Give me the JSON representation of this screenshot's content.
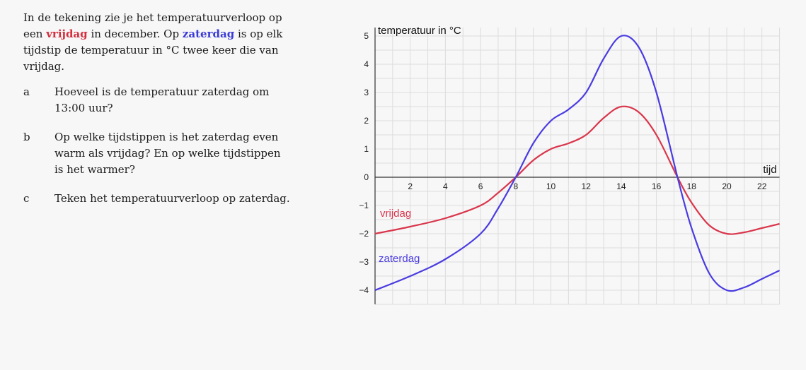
{
  "intro": {
    "p1": "In de tekening zie je het temperatuurverloop op een",
    "vrijdag": "vrijdag",
    "p2": "in december. Op",
    "zaterdag": "zaterdag",
    "p3": "is op elk tijdstip de temperatuur in °C twee keer die van vrijdag."
  },
  "questions": [
    {
      "letter": "a",
      "text": "Hoeveel is de temperatuur zaterdag om 13:00 uur?"
    },
    {
      "letter": "b",
      "text": "Op welke tijdstippen is het zaterdag even warm als vrijdag? En op welke tijdstippen is het warmer?"
    },
    {
      "letter": "c",
      "text": "Teken het temperatuurverloop op zaterdag."
    }
  ],
  "colors": {
    "vrijdag": "#d9364b",
    "zaterdag": "#4a3ce0"
  },
  "chart_data": {
    "type": "line",
    "ylabel": "temperatuur in °C",
    "xlabel": "tijd",
    "xlim": [
      0,
      23
    ],
    "ylim": [
      -4.5,
      5.3
    ],
    "xticks": [
      2,
      4,
      6,
      8,
      10,
      12,
      14,
      16,
      18,
      20,
      22
    ],
    "yticks": [
      -4,
      -3,
      -2,
      -1,
      0,
      1,
      2,
      3,
      4,
      5
    ],
    "ytick_labels": [
      "−4",
      "−3",
      "−2",
      "−1",
      "0",
      "1",
      "2",
      "3",
      "4",
      "5"
    ],
    "grid": true,
    "series": [
      {
        "name": "vrijdag",
        "x": [
          0,
          2,
          4,
          6,
          7,
          8,
          9,
          10,
          11,
          12,
          13,
          14,
          15,
          16,
          17.2,
          18,
          19,
          20,
          21,
          22,
          23
        ],
        "y": [
          -2,
          -1.75,
          -1.45,
          -1,
          -0.55,
          0,
          0.6,
          1,
          1.2,
          1.5,
          2.1,
          2.5,
          2.3,
          1.5,
          0,
          -0.9,
          -1.7,
          -2,
          -1.95,
          -1.8,
          -1.65
        ]
      },
      {
        "name": "zaterdag",
        "x": [
          0,
          2,
          4,
          6,
          7,
          8,
          9,
          10,
          11,
          12,
          13,
          14,
          15,
          16,
          17.2,
          18,
          19,
          20,
          21,
          22,
          23
        ],
        "y": [
          -4,
          -3.5,
          -2.9,
          -2,
          -1.1,
          0,
          1.2,
          2,
          2.4,
          3,
          4.2,
          5,
          4.6,
          3,
          0,
          -1.8,
          -3.4,
          -4,
          -3.9,
          -3.6,
          -3.3
        ]
      }
    ]
  }
}
